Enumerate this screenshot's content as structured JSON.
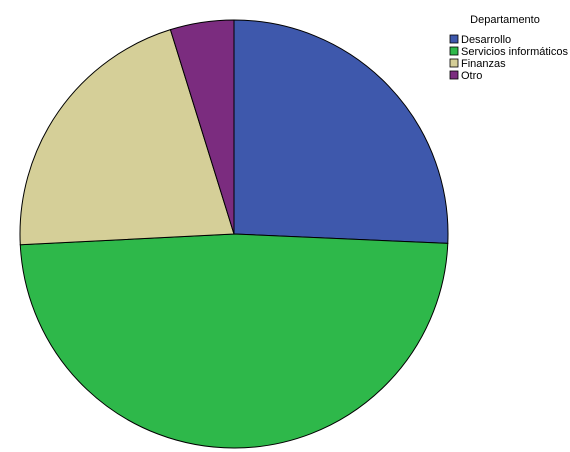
{
  "chart_data": {
    "type": "pie",
    "legend_title": "Departamento",
    "categories": [
      "Desarrollo",
      "Servicios informáticos",
      "Finanzas",
      "Otro"
    ],
    "values": [
      25.7,
      48.5,
      21.0,
      4.8
    ],
    "colors": [
      "#3e58ac",
      "#2eb84a",
      "#d5cf98",
      "#7b2c7f"
    ],
    "legend": "top-right"
  }
}
